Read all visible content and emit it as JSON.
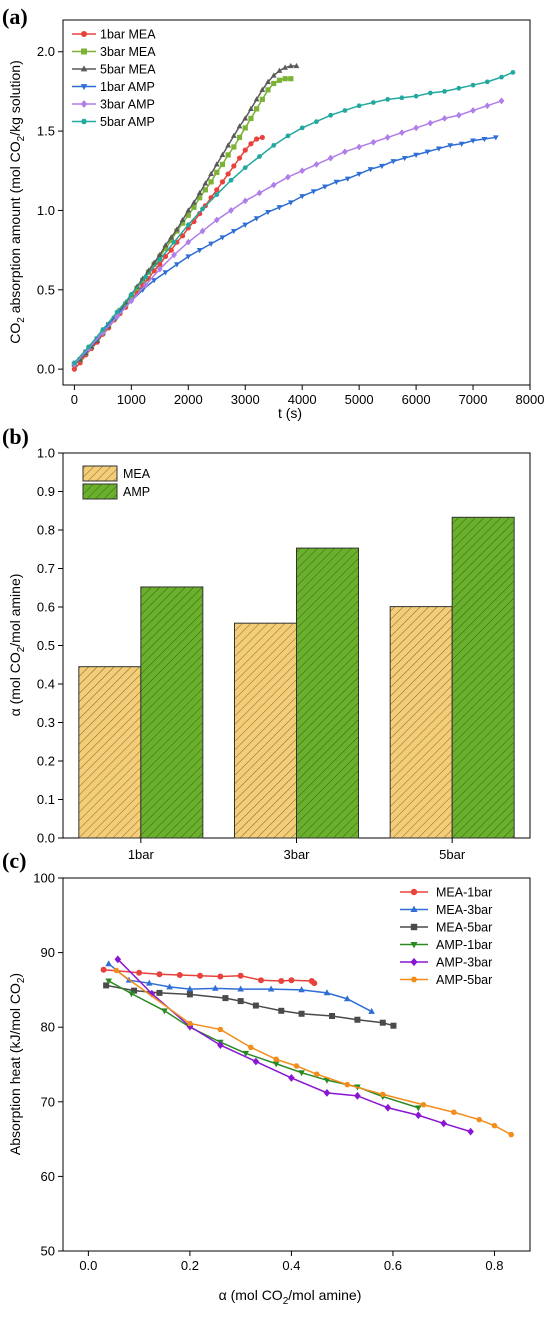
{
  "colors": {
    "mea1": "#e8423c",
    "mea3": "#7cb236",
    "mea5": "#5a5a5a",
    "amp1": "#2f6ed6",
    "amp3": "#b07ee8",
    "amp5": "#23a8a0",
    "c_mea1": "#e8423c",
    "c_mea3": "#2f6ed6",
    "c_mea5": "#4a4a4a",
    "c_amp1": "#2a8a22",
    "c_amp3": "#8a16d4",
    "c_amp5": "#f28c1a",
    "bar_mea": "#f3cd78",
    "bar_amp": "#6bb02d"
  },
  "chart_data": [
    {
      "panel_label": "(a)",
      "type": "line",
      "xlabel": "t (s)",
      "ylabel": {
        "pre": "CO",
        "sub": "2",
        "mid": " absorption amount (mol CO",
        "sub2": "2",
        "post": "/kg solution)"
      },
      "xlim": [
        -200,
        8000
      ],
      "ylim": [
        -0.1,
        2.2
      ],
      "xticks": [
        0,
        1000,
        2000,
        3000,
        4000,
        5000,
        6000,
        7000,
        8000
      ],
      "yticks": [
        "0.0",
        "0.5",
        "1.0",
        "1.5",
        "2.0"
      ],
      "legend_position": "top-left",
      "series": [
        {
          "name": "1bar MEA",
          "color_key": "mea1",
          "marker": "circle",
          "x": [
            0,
            100,
            200,
            300,
            400,
            500,
            600,
            700,
            800,
            900,
            1000,
            1100,
            1200,
            1300,
            1400,
            1500,
            1600,
            1700,
            1800,
            1900,
            2000,
            2100,
            2200,
            2300,
            2400,
            2500,
            2600,
            2700,
            2800,
            2900,
            3000,
            3100,
            3200,
            3300
          ],
          "y": [
            0.0,
            0.04,
            0.09,
            0.13,
            0.17,
            0.22,
            0.26,
            0.31,
            0.35,
            0.39,
            0.44,
            0.48,
            0.53,
            0.57,
            0.62,
            0.66,
            0.71,
            0.75,
            0.8,
            0.84,
            0.89,
            0.93,
            0.98,
            1.03,
            1.08,
            1.13,
            1.18,
            1.23,
            1.28,
            1.33,
            1.38,
            1.42,
            1.45,
            1.46
          ]
        },
        {
          "name": "3bar MEA",
          "color_key": "mea3",
          "marker": "square",
          "x": [
            0,
            100,
            200,
            300,
            400,
            500,
            600,
            700,
            800,
            900,
            1000,
            1100,
            1200,
            1300,
            1400,
            1500,
            1600,
            1700,
            1800,
            1900,
            2000,
            2100,
            2200,
            2300,
            2400,
            2500,
            2600,
            2700,
            2800,
            2900,
            3000,
            3100,
            3200,
            3300,
            3400,
            3500,
            3600,
            3700,
            3800
          ],
          "y": [
            0.03,
            0.06,
            0.1,
            0.14,
            0.19,
            0.23,
            0.28,
            0.32,
            0.37,
            0.41,
            0.46,
            0.51,
            0.56,
            0.61,
            0.66,
            0.71,
            0.76,
            0.81,
            0.87,
            0.92,
            0.97,
            1.02,
            1.08,
            1.13,
            1.18,
            1.24,
            1.29,
            1.35,
            1.4,
            1.46,
            1.52,
            1.58,
            1.64,
            1.7,
            1.76,
            1.8,
            1.82,
            1.83,
            1.83
          ]
        },
        {
          "name": "5bar MEA",
          "color_key": "mea5",
          "marker": "triangle",
          "x": [
            0,
            100,
            200,
            300,
            400,
            500,
            600,
            700,
            800,
            900,
            1000,
            1100,
            1200,
            1300,
            1400,
            1500,
            1600,
            1700,
            1800,
            1900,
            2000,
            2100,
            2200,
            2300,
            2400,
            2500,
            2600,
            2700,
            2800,
            2900,
            3000,
            3100,
            3200,
            3300,
            3400,
            3500,
            3600,
            3700,
            3800,
            3900
          ],
          "y": [
            0.03,
            0.06,
            0.1,
            0.14,
            0.18,
            0.23,
            0.27,
            0.32,
            0.37,
            0.42,
            0.47,
            0.52,
            0.57,
            0.62,
            0.67,
            0.72,
            0.78,
            0.83,
            0.88,
            0.94,
            1.0,
            1.05,
            1.11,
            1.17,
            1.23,
            1.29,
            1.35,
            1.41,
            1.47,
            1.53,
            1.58,
            1.64,
            1.7,
            1.76,
            1.81,
            1.85,
            1.88,
            1.9,
            1.91,
            1.91
          ]
        },
        {
          "name": "1bar AMP",
          "color_key": "amp1",
          "marker": "triangle-down",
          "x": [
            0,
            200,
            400,
            600,
            800,
            1000,
            1200,
            1400,
            1600,
            1800,
            2000,
            2200,
            2400,
            2600,
            2800,
            3000,
            3200,
            3400,
            3600,
            3800,
            4000,
            4200,
            4400,
            4600,
            4800,
            5000,
            5200,
            5400,
            5600,
            5800,
            6000,
            6200,
            6400,
            6600,
            6800,
            7000,
            7200,
            7400
          ],
          "y": [
            0.03,
            0.11,
            0.19,
            0.28,
            0.36,
            0.43,
            0.5,
            0.56,
            0.61,
            0.66,
            0.71,
            0.75,
            0.79,
            0.83,
            0.87,
            0.91,
            0.95,
            0.99,
            1.02,
            1.05,
            1.09,
            1.12,
            1.15,
            1.18,
            1.2,
            1.23,
            1.26,
            1.28,
            1.31,
            1.33,
            1.35,
            1.37,
            1.39,
            1.41,
            1.42,
            1.44,
            1.45,
            1.46
          ]
        },
        {
          "name": "3bar AMP",
          "color_key": "amp3",
          "marker": "diamond",
          "x": [
            0,
            250,
            500,
            750,
            1000,
            1250,
            1500,
            1750,
            2000,
            2250,
            2500,
            2750,
            3000,
            3250,
            3500,
            3750,
            4000,
            4250,
            4500,
            4750,
            5000,
            5250,
            5500,
            5750,
            6000,
            6250,
            6500,
            6750,
            7000,
            7250,
            7500
          ],
          "y": [
            0.03,
            0.13,
            0.23,
            0.33,
            0.43,
            0.53,
            0.63,
            0.72,
            0.8,
            0.87,
            0.94,
            1.0,
            1.06,
            1.11,
            1.16,
            1.21,
            1.25,
            1.29,
            1.33,
            1.37,
            1.4,
            1.43,
            1.46,
            1.49,
            1.52,
            1.55,
            1.58,
            1.6,
            1.63,
            1.66,
            1.69
          ]
        },
        {
          "name": "5bar AMP",
          "color_key": "amp5",
          "marker": "hexagon",
          "x": [
            0,
            250,
            500,
            750,
            1000,
            1250,
            1500,
            1750,
            2000,
            2250,
            2500,
            2750,
            3000,
            3250,
            3500,
            3750,
            4000,
            4250,
            4500,
            4750,
            5000,
            5250,
            5500,
            5750,
            6000,
            6250,
            6500,
            6750,
            7000,
            7250,
            7500,
            7700
          ],
          "y": [
            0.04,
            0.14,
            0.25,
            0.36,
            0.47,
            0.58,
            0.69,
            0.8,
            0.91,
            1.01,
            1.1,
            1.19,
            1.27,
            1.34,
            1.41,
            1.47,
            1.52,
            1.56,
            1.6,
            1.63,
            1.66,
            1.68,
            1.7,
            1.71,
            1.72,
            1.74,
            1.75,
            1.77,
            1.79,
            1.81,
            1.84,
            1.87
          ]
        }
      ]
    },
    {
      "panel_label": "(b)",
      "type": "bar",
      "ylabel": {
        "pre": "α (mol CO",
        "sub": "2",
        "post": "/mol amine)"
      },
      "ylim": [
        0,
        1.0
      ],
      "yticks": [
        "0.0",
        "0.1",
        "0.2",
        "0.3",
        "0.4",
        "0.5",
        "0.6",
        "0.7",
        "0.8",
        "0.9",
        "1.0"
      ],
      "categories": [
        "1bar",
        "3bar",
        "5bar"
      ],
      "legend_position": "top-left",
      "series": [
        {
          "name": "MEA",
          "color_key": "bar_mea",
          "values": [
            0.445,
            0.558,
            0.601
          ]
        },
        {
          "name": "AMP",
          "color_key": "bar_amp",
          "values": [
            0.652,
            0.753,
            0.833
          ]
        }
      ]
    },
    {
      "panel_label": "(c)",
      "type": "line",
      "xlabel": {
        "pre": "α (mol CO",
        "sub": "2",
        "post": "/mol amine)"
      },
      "ylabel": {
        "pre": "Absorption heat (kJ/mol CO",
        "sub": "2",
        "post": ")"
      },
      "xlim": [
        -0.05,
        0.87
      ],
      "ylim": [
        50,
        100
      ],
      "xticks": [
        "0.0",
        "0.2",
        "0.4",
        "0.6",
        "0.8"
      ],
      "yticks": [
        "50",
        "60",
        "70",
        "80",
        "90",
        "100"
      ],
      "legend_position": "top-right",
      "series": [
        {
          "name": "MEA-1bar",
          "color_key": "c_mea1",
          "marker": "circle",
          "x": [
            0.03,
            0.1,
            0.14,
            0.18,
            0.22,
            0.26,
            0.3,
            0.34,
            0.38,
            0.4,
            0.44,
            0.445
          ],
          "y": [
            87.7,
            87.3,
            87.1,
            87.0,
            86.9,
            86.8,
            86.9,
            86.3,
            86.2,
            86.3,
            86.2,
            85.9
          ]
        },
        {
          "name": "MEA-3bar",
          "color_key": "c_mea3",
          "marker": "triangle",
          "x": [
            0.04,
            0.08,
            0.12,
            0.16,
            0.2,
            0.25,
            0.3,
            0.36,
            0.42,
            0.47,
            0.51,
            0.558
          ],
          "y": [
            88.5,
            86.3,
            85.9,
            85.4,
            85.1,
            85.2,
            85.1,
            85.1,
            85.0,
            84.6,
            83.8,
            82.1
          ]
        },
        {
          "name": "MEA-5bar",
          "color_key": "c_mea5",
          "marker": "square",
          "x": [
            0.035,
            0.09,
            0.14,
            0.2,
            0.27,
            0.3,
            0.33,
            0.38,
            0.42,
            0.48,
            0.53,
            0.58,
            0.601
          ],
          "y": [
            85.6,
            84.9,
            84.6,
            84.4,
            83.9,
            83.5,
            82.9,
            82.2,
            81.8,
            81.5,
            81.0,
            80.6,
            80.2
          ]
        },
        {
          "name": "AMP-1bar",
          "color_key": "c_amp1",
          "marker": "triangle-down",
          "x": [
            0.04,
            0.085,
            0.15,
            0.2,
            0.26,
            0.31,
            0.37,
            0.42,
            0.47,
            0.53,
            0.58,
            0.65
          ],
          "y": [
            86.2,
            84.5,
            82.2,
            80.0,
            78.0,
            76.5,
            75.1,
            73.9,
            72.9,
            72.0,
            70.7,
            69.2
          ]
        },
        {
          "name": "AMP-3bar",
          "color_key": "c_amp3",
          "marker": "diamond",
          "x": [
            0.058,
            0.125,
            0.2,
            0.26,
            0.33,
            0.4,
            0.47,
            0.53,
            0.59,
            0.65,
            0.7,
            0.753
          ],
          "y": [
            89.1,
            84.5,
            80.1,
            77.6,
            75.4,
            73.2,
            71.2,
            70.8,
            69.2,
            68.2,
            67.1,
            66.0
          ]
        },
        {
          "name": "AMP-5bar",
          "color_key": "c_amp5",
          "marker": "hexagon",
          "x": [
            0.055,
            0.2,
            0.26,
            0.32,
            0.37,
            0.41,
            0.45,
            0.51,
            0.58,
            0.66,
            0.72,
            0.77,
            0.8,
            0.833
          ],
          "y": [
            87.6,
            80.5,
            79.7,
            77.3,
            75.7,
            74.8,
            73.7,
            72.3,
            71.0,
            69.6,
            68.6,
            67.6,
            66.8,
            65.6
          ]
        }
      ]
    }
  ]
}
